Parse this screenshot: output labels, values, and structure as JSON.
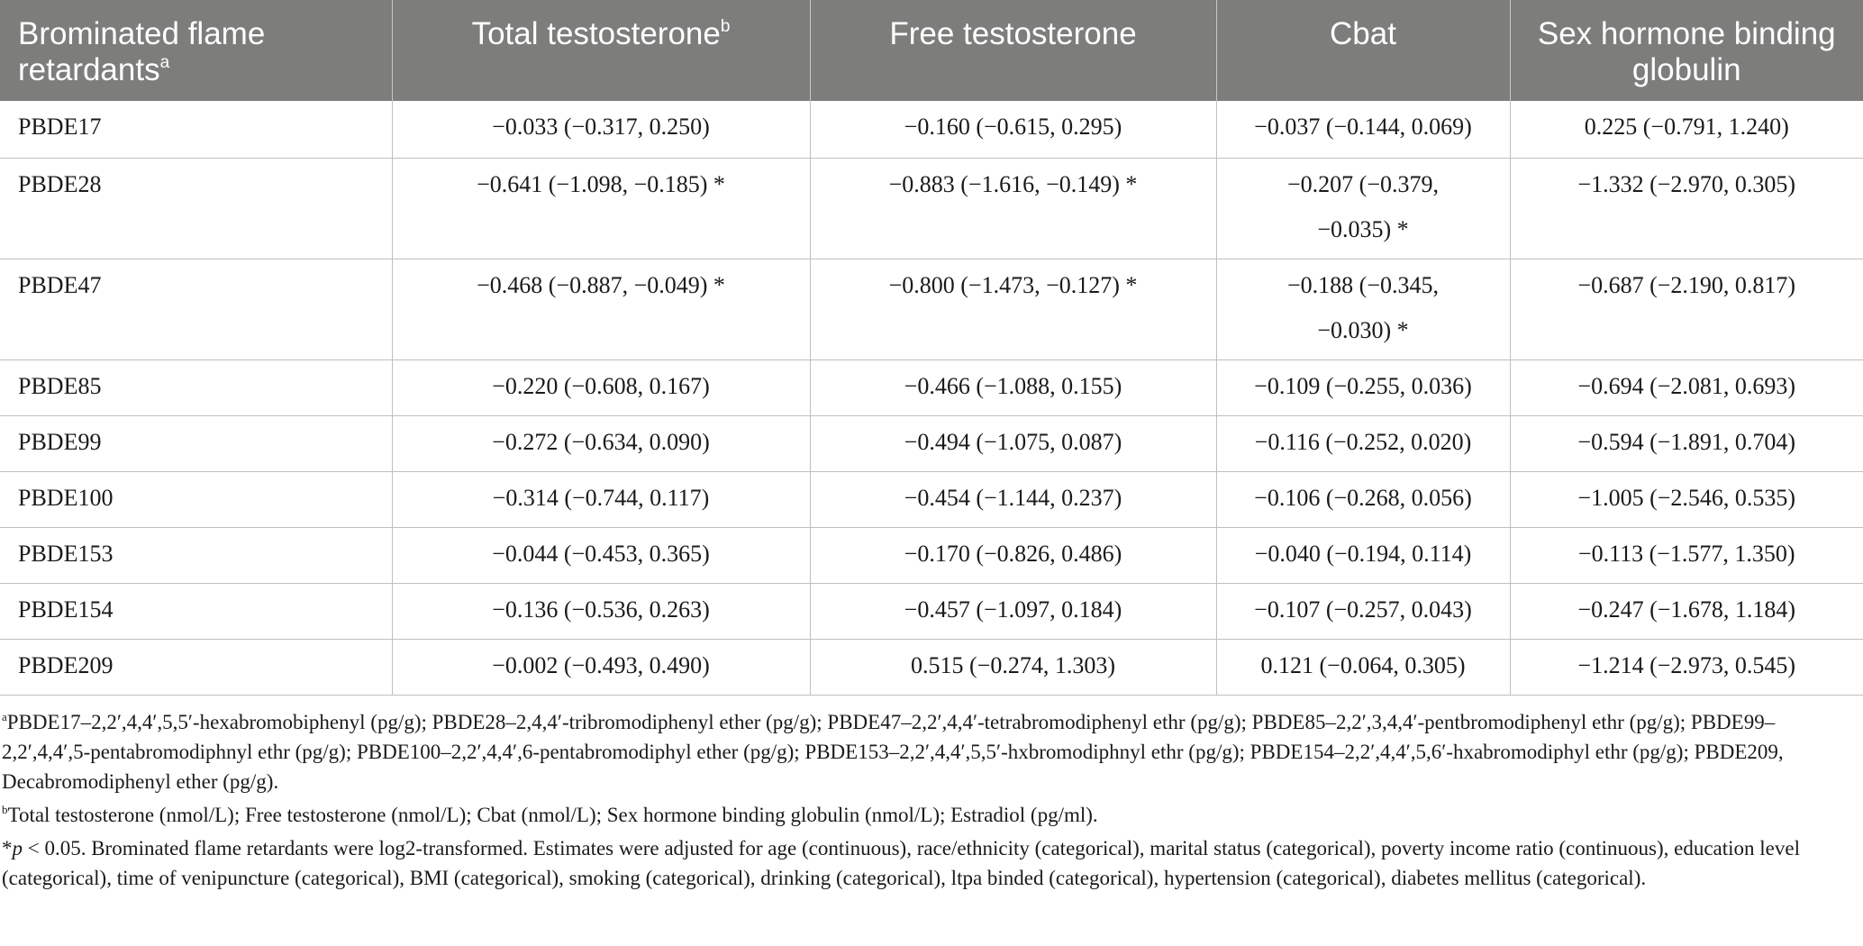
{
  "table": {
    "headers": [
      {
        "text": "Brominated flame retardants",
        "sup": "a"
      },
      {
        "text": "Total testosterone",
        "sup": "b"
      },
      {
        "text": "Free testosterone",
        "sup": ""
      },
      {
        "text": "Cbat",
        "sup": ""
      },
      {
        "text": "Sex hormone binding globulin",
        "sup": ""
      }
    ],
    "rows": [
      {
        "name": "PBDE17",
        "total": "−0.033 (−0.317, 0.250)",
        "free": "−0.160 (−0.615, 0.295)",
        "cbat": "−0.037 (−0.144, 0.069)",
        "cbat_cont": "",
        "shbg": "0.225 (−0.791, 1.240)"
      },
      {
        "name": "PBDE28",
        "total": "−0.641 (−1.098, −0.185) *",
        "free": "−0.883 (−1.616, −0.149) *",
        "cbat": "−0.207 (−0.379,",
        "cbat_cont": "−0.035) *",
        "shbg": "−1.332 (−2.970, 0.305)"
      },
      {
        "name": "PBDE47",
        "total": "−0.468 (−0.887, −0.049) *",
        "free": "−0.800 (−1.473, −0.127) *",
        "cbat": "−0.188 (−0.345,",
        "cbat_cont": "−0.030) *",
        "shbg": "−0.687 (−2.190, 0.817)"
      },
      {
        "name": "PBDE85",
        "total": "−0.220 (−0.608, 0.167)",
        "free": "−0.466 (−1.088, 0.155)",
        "cbat": "−0.109 (−0.255, 0.036)",
        "cbat_cont": "",
        "shbg": "−0.694 (−2.081, 0.693)"
      },
      {
        "name": "PBDE99",
        "total": "−0.272 (−0.634, 0.090)",
        "free": "−0.494 (−1.075, 0.087)",
        "cbat": "−0.116 (−0.252, 0.020)",
        "cbat_cont": "",
        "shbg": "−0.594 (−1.891, 0.704)"
      },
      {
        "name": "PBDE100",
        "total": "−0.314 (−0.744, 0.117)",
        "free": "−0.454 (−1.144, 0.237)",
        "cbat": "−0.106 (−0.268, 0.056)",
        "cbat_cont": "",
        "shbg": "−1.005 (−2.546, 0.535)"
      },
      {
        "name": "PBDE153",
        "total": "−0.044 (−0.453, 0.365)",
        "free": "−0.170 (−0.826, 0.486)",
        "cbat": "−0.040 (−0.194, 0.114)",
        "cbat_cont": "",
        "shbg": "−0.113 (−1.577, 1.350)"
      },
      {
        "name": "PBDE154",
        "total": "−0.136 (−0.536, 0.263)",
        "free": "−0.457 (−1.097, 0.184)",
        "cbat": "−0.107 (−0.257, 0.043)",
        "cbat_cont": "",
        "shbg": "−0.247 (−1.678, 1.184)"
      },
      {
        "name": "PBDE209",
        "total": "−0.002 (−0.493, 0.490)",
        "free": "0.515 (−0.274, 1.303)",
        "cbat": "0.121 (−0.064, 0.305)",
        "cbat_cont": "",
        "shbg": "−1.214 (−2.973, 0.545)"
      }
    ]
  },
  "footnotes": {
    "a_mark": "a",
    "a_text": "PBDE17–2,2′,4,4′,5,5′-hexabromobiphenyl (pg/g); PBDE28–2,4,4′-tribromodiphenyl ether (pg/g); PBDE47–2,2′,4,4′-tetrabromodiphenyl ethr (pg/g); PBDE85–2,2′,3,4,4′-pentbromodiphenyl ethr (pg/g); PBDE99–2,2′,4,4′,5-pentabromodiphnyl ethr (pg/g); PBDE100–2,2′,4,4′,6-pentabromodiphyl ether (pg/g); PBDE153–2,2′,4,4′,5,5′-hxbromodiphnyl ethr (pg/g); PBDE154–2,2′,4,4′,5,6′-hxabromodiphyl ethr (pg/g); PBDE209, Decabromodiphenyl ether (pg/g).",
    "b_mark": "b",
    "b_text": "Total testosterone (nmol/L); Free testosterone (nmol/L); Cbat (nmol/L); Sex hormone binding globulin (nmol/L); Estradiol (pg/ml).",
    "star_mark": "*",
    "star_p": "p",
    "star_text": " < 0.05. Brominated flame retardants were log2-transformed. Estimates were adjusted for age (continuous), race/ethnicity (categorical), marital status (categorical), poverty income ratio (continuous), education level (categorical), time of venipuncture (categorical), BMI (categorical), smoking (categorical), drinking (categorical), ltpa binded (categorical), hypertension (categorical), diabetes mellitus (categorical)."
  }
}
